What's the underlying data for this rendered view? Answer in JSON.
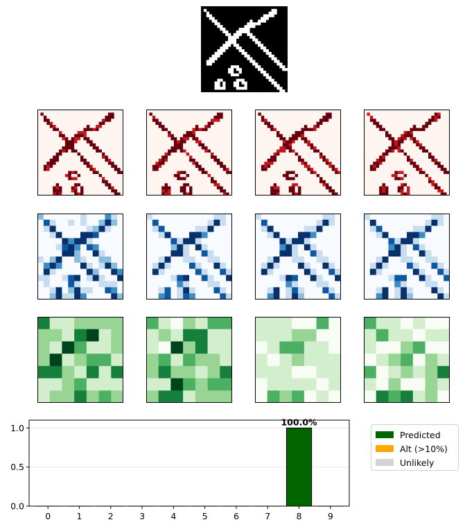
{
  "input_image": {
    "grid": [
      "00000000000000000000000000000000",
      "01000000000000000000000000110000",
      "00100000000000000000000001110000",
      "00110000000000000000000111100000",
      "00011000000000000000001110000000",
      "00001100000000000010011100000000",
      "00000110000000000111110000000000",
      "00000011000000001111000000000000",
      "00000001100000111100000000000000",
      "00000000110001111100000000000000",
      "00000000011011100110000000000000",
      "00000000001111000011000000000000",
      "00000000001110000001100000000000",
      "00000000011110000000110000000000",
      "00000000111011000000011000000000",
      "00000001110001100000001100000000",
      "00000011100000110000000110000000",
      "00000111000000011000000011000000",
      "00001110000000001100000001100000",
      "00011100000000000110000000110000",
      "00111000000000000011000000011000",
      "00110000000000000001100000001100",
      "00000000000111000000110000000110",
      "00000000001101100000011000000011",
      "00000000001100100000001100000000",
      "00000000000111000000000110000000",
      "00000000000000000000000011000000",
      "00000011000001110000000001100000",
      "00000110100011011000000000110000",
      "00000110100011001000000000011000",
      "00000111100001111000000000001100",
      "00000000000000000000000000000110"
    ]
  },
  "feature_maps": {
    "rows": [
      {
        "colormap": "reds",
        "resolution": 28,
        "maps": [
          "map-1",
          "map-2",
          "map-3",
          "map-4"
        ]
      },
      {
        "colormap": "blues",
        "resolution": 14,
        "maps": [
          "map-1",
          "map-2",
          "map-3",
          "map-4"
        ]
      },
      {
        "colormap": "greens",
        "resolution": 7,
        "maps": [
          "map-1",
          "map-2",
          "map-3",
          "map-4"
        ]
      }
    ],
    "colors": {
      "reds": [
        "#fff5f0",
        "#fdd5c3",
        "#fc9c7d",
        "#f5553c",
        "#c7171c",
        "#67000d"
      ],
      "blues": [
        "#f7fbff",
        "#c8ddf0",
        "#89bedc",
        "#3d8dc4",
        "#0d58a1",
        "#08306b"
      ],
      "greens": [
        "#f7fcf5",
        "#d3eecd",
        "#98d594",
        "#4bb062",
        "#157f3b",
        "#00441b"
      ]
    }
  },
  "chart_data": {
    "type": "bar",
    "categories": [
      "0",
      "1",
      "2",
      "3",
      "4",
      "5",
      "6",
      "7",
      "8",
      "9"
    ],
    "values": [
      0.0,
      0.0,
      0.0,
      0.0,
      0.0,
      0.0,
      0.0,
      0.0,
      1.0,
      0.0
    ],
    "data_labels": {
      "8": "100.0%"
    },
    "ylim": [
      0.0,
      1.1
    ],
    "yticks": [
      "0.0",
      "0.5",
      "1.0"
    ],
    "grid": "horizontal",
    "colors": {
      "predicted": "#006400",
      "alt": "#ffa500",
      "unlikely": "#d3d3d3"
    },
    "legend": {
      "placement": "right",
      "items": [
        {
          "label": "Predicted",
          "color": "#006400"
        },
        {
          "label": "Alt (>10%)",
          "color": "#ffa500"
        },
        {
          "label": "Unlikely",
          "color": "#d3d3d3"
        }
      ]
    }
  }
}
